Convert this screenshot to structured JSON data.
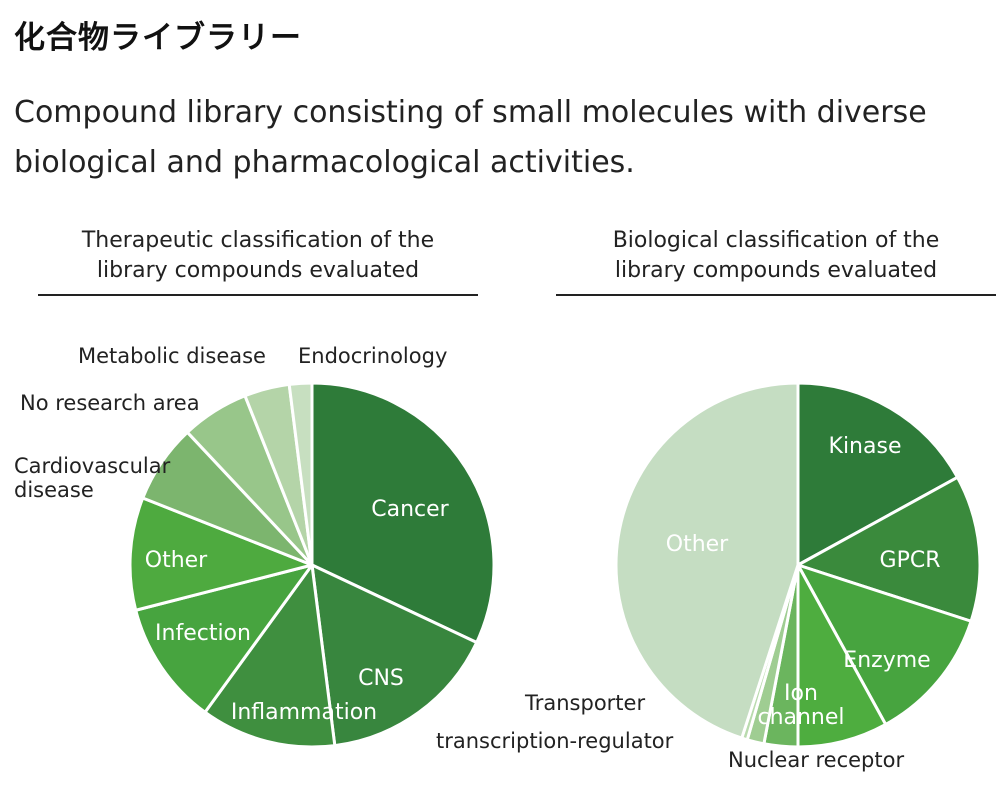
{
  "page": {
    "title": "化合物ライブラリー",
    "description": "Compound library consisting of small molecules with diverse biological and pharmacological activities."
  },
  "chart_data": [
    {
      "type": "pie",
      "title_line1": "Therapeutic classification of the",
      "title_line2": "library compounds evaluated",
      "unit": "percent (estimated)",
      "slices": [
        {
          "label": "Cancer",
          "value": 32,
          "color": "#2e7b39",
          "label_style": "inside"
        },
        {
          "label": "CNS",
          "value": 16,
          "color": "#38863e",
          "label_style": "inside"
        },
        {
          "label": "Inflammation",
          "value": 12,
          "color": "#3f8f3f",
          "label_style": "inside"
        },
        {
          "label": "Infection",
          "value": 11,
          "color": "#47a43f",
          "label_style": "inside"
        },
        {
          "label": "Other",
          "value": 10,
          "color": "#4eaa3f",
          "label_style": "inside"
        },
        {
          "label": "Cardiovascular disease",
          "label_lines": [
            "Cardiovascular",
            "disease"
          ],
          "value": 7,
          "color": "#7cb56e",
          "label_style": "outside"
        },
        {
          "label": "No research area",
          "value": 6,
          "color": "#98c68a",
          "label_style": "outside"
        },
        {
          "label": "Metabolic disease",
          "value": 4,
          "color": "#b4d4a8",
          "label_style": "outside"
        },
        {
          "label": "Endocrinology",
          "value": 2,
          "color": "#c7dfc0",
          "label_style": "outside"
        }
      ]
    },
    {
      "type": "pie",
      "title_line1": "Biological classification of the",
      "title_line2": "library compounds evaluated",
      "unit": "percent (estimated)",
      "slices": [
        {
          "label": "Kinase",
          "value": 17,
          "color": "#2e7b39",
          "label_style": "inside"
        },
        {
          "label": "GPCR",
          "value": 13,
          "color": "#3a8a3c",
          "label_style": "inside"
        },
        {
          "label": "Enzyme",
          "value": 12,
          "color": "#47a43f",
          "label_style": "inside"
        },
        {
          "label": "Ion channel",
          "label_lines": [
            "Ion",
            "channel"
          ],
          "value": 8,
          "color": "#4ead3f",
          "label_style": "inside"
        },
        {
          "label": "Nuclear receptor",
          "value": 3,
          "color": "#6bb55e",
          "label_style": "outside"
        },
        {
          "label": "transcription-regulator",
          "value": 1.5,
          "color": "#9fcd92",
          "label_style": "outside"
        },
        {
          "label": "Transporter",
          "value": 0.5,
          "color": "#b9dbae",
          "label_style": "outside"
        },
        {
          "label": "Other",
          "value": 45,
          "color": "#c5ddc2",
          "label_style": "inside"
        }
      ]
    }
  ]
}
